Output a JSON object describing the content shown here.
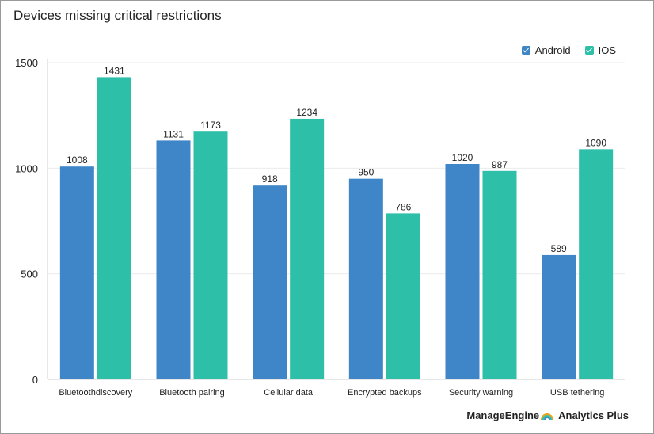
{
  "title": "Devices missing critical restrictions",
  "legend": [
    {
      "label": "Android",
      "color": "#3f86c8"
    },
    {
      "label": "IOS",
      "color": "#2ebfa9"
    }
  ],
  "brand": {
    "part1": "ManageEngine",
    "part2": "Analytics Plus"
  },
  "chart_data": {
    "type": "bar",
    "title": "Devices missing critical restrictions",
    "categories": [
      "Bluetoothdiscovery",
      "Bluetooth pairing",
      "Cellular data",
      "Encrypted backups",
      "Security warning",
      "USB tethering"
    ],
    "series": [
      {
        "name": "Android",
        "color": "#3f86c8",
        "values": [
          1008,
          1131,
          918,
          950,
          1020,
          589
        ]
      },
      {
        "name": "IOS",
        "color": "#2ebfa9",
        "values": [
          1431,
          1173,
          1234,
          786,
          987,
          1090
        ]
      }
    ],
    "yticks": [
      0,
      500,
      1000,
      1500
    ],
    "ylim": [
      0,
      1500
    ],
    "grid": true,
    "legend_position": "top-right",
    "xlabel": "",
    "ylabel": ""
  }
}
